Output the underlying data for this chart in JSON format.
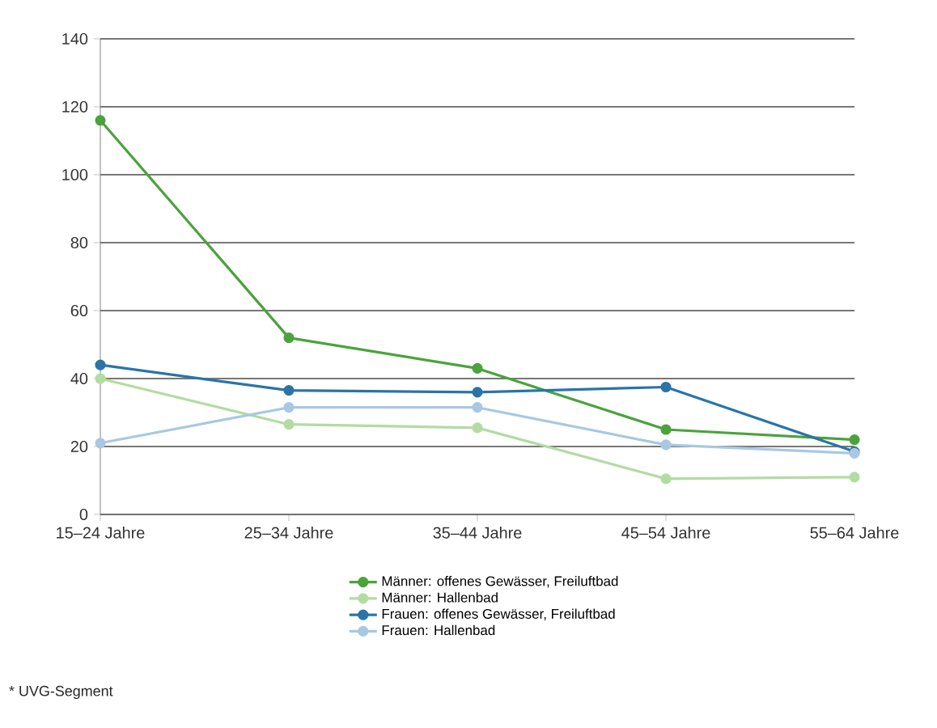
{
  "chart_data": {
    "type": "line",
    "categories": [
      "15–24 Jahre",
      "25–34 Jahre",
      "35–44 Jahre",
      "45–54 Jahre",
      "55–64 Jahre"
    ],
    "series": [
      {
        "name": "Männer: offenes Gewässer, Freiluftbad",
        "color": "#4aa33b",
        "values": [
          116,
          52,
          43,
          25,
          22
        ]
      },
      {
        "name": "Männer: Hallenbad",
        "color": "#b2dca2",
        "values": [
          40,
          26.5,
          25.5,
          10.5,
          11
        ]
      },
      {
        "name": "Frauen: offenes Gewässer, Freiluftbad",
        "color": "#2a74a8",
        "values": [
          44,
          36.5,
          36,
          37.5,
          18.5
        ]
      },
      {
        "name": "Frauen: Hallenbad",
        "color": "#a8c8e4",
        "values": [
          21,
          31.5,
          31.5,
          20.5,
          18
        ]
      }
    ],
    "ylim": [
      0,
      140
    ],
    "yticks": [
      0,
      20,
      40,
      60,
      80,
      100,
      120,
      140
    ],
    "grid": "y",
    "legend": "bottom",
    "marker": "circle",
    "line_style": "solid",
    "annotations": [
      "* UVG-Segment"
    ]
  }
}
